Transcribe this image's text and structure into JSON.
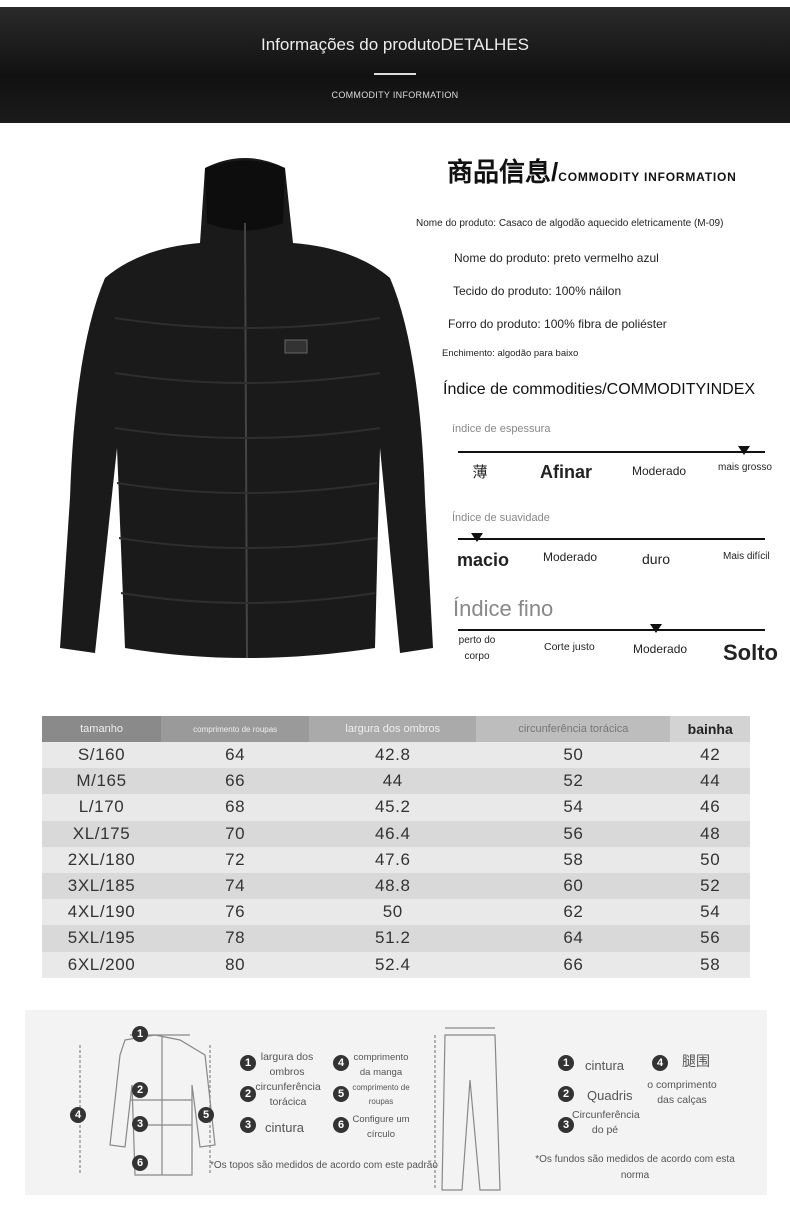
{
  "banner": {
    "title": "Informações do produtoDETALHES",
    "subtitle": "COMMODITY INFORMATION"
  },
  "info": {
    "heading_cn": "商品信息/",
    "heading_en": "COMMODITY INFORMATION",
    "lines": [
      "Nome do produto: Casaco de algodão aquecido eletricamente (M-09)",
      "Nome do produto: preto vermelho azul",
      "Tecido do produto: 100% náilon",
      "Forro do produto: 100% fibra de poliéster",
      "Enchimento: algodão para baixo"
    ]
  },
  "index": {
    "title": "Índice de commodities/COMMODITYINDEX",
    "scales": [
      {
        "label": "índice de espessura",
        "options": [
          "薄",
          "Afinar",
          "Moderado",
          "mais grosso"
        ],
        "selected_index": 3
      },
      {
        "label": "Índice de suavidade",
        "options": [
          "macio",
          "Moderado",
          "duro",
          "Mais difícil"
        ],
        "selected_index": 0
      },
      {
        "label": "Índice fino",
        "options": [
          "perto do corpo",
          "Corte justo",
          "Moderado",
          "Solto"
        ],
        "selected_index": 2
      }
    ]
  },
  "size_table": {
    "headers": [
      "tamanho",
      "comprimento de roupas",
      "largura dos ombros",
      "circunferência torácica",
      "bainha"
    ],
    "header_colors": [
      "#8a8a8a",
      "#9a9a9a",
      "#aaaaaa",
      "#bdbdbd",
      "#d3d3d3"
    ],
    "rows": [
      [
        "S/160",
        "64",
        "42.8",
        "50",
        "42"
      ],
      [
        "M/165",
        "66",
        "44",
        "52",
        "44"
      ],
      [
        "L/170",
        "68",
        "45.2",
        "54",
        "46"
      ],
      [
        "XL/175",
        "70",
        "46.4",
        "56",
        "48"
      ],
      [
        "2XL/180",
        "72",
        "47.6",
        "58",
        "50"
      ],
      [
        "3XL/185",
        "74",
        "48.8",
        "60",
        "52"
      ],
      [
        "4XL/190",
        "76",
        "50",
        "62",
        "54"
      ],
      [
        "5XL/195",
        "78",
        "51.2",
        "64",
        "56"
      ],
      [
        "6XL/200",
        "80",
        "52.4",
        "66",
        "58"
      ]
    ]
  },
  "measure_guide": {
    "tops": {
      "items": [
        "largura dos ombros",
        "circunferência torácica",
        "cintura",
        "comprimento da manga",
        "comprimento de roupas",
        "Configure um círculo"
      ],
      "note": "*Os topos são medidos de acordo com este padrão"
    },
    "bottoms": {
      "items": [
        "cintura",
        "Quadris",
        "Circunferência do pé",
        "腿围",
        "o comprimento das calças"
      ],
      "note": "*Os fundos são medidos de acordo com esta norma"
    },
    "numbers": [
      "1",
      "2",
      "3",
      "4",
      "5",
      "6"
    ]
  }
}
